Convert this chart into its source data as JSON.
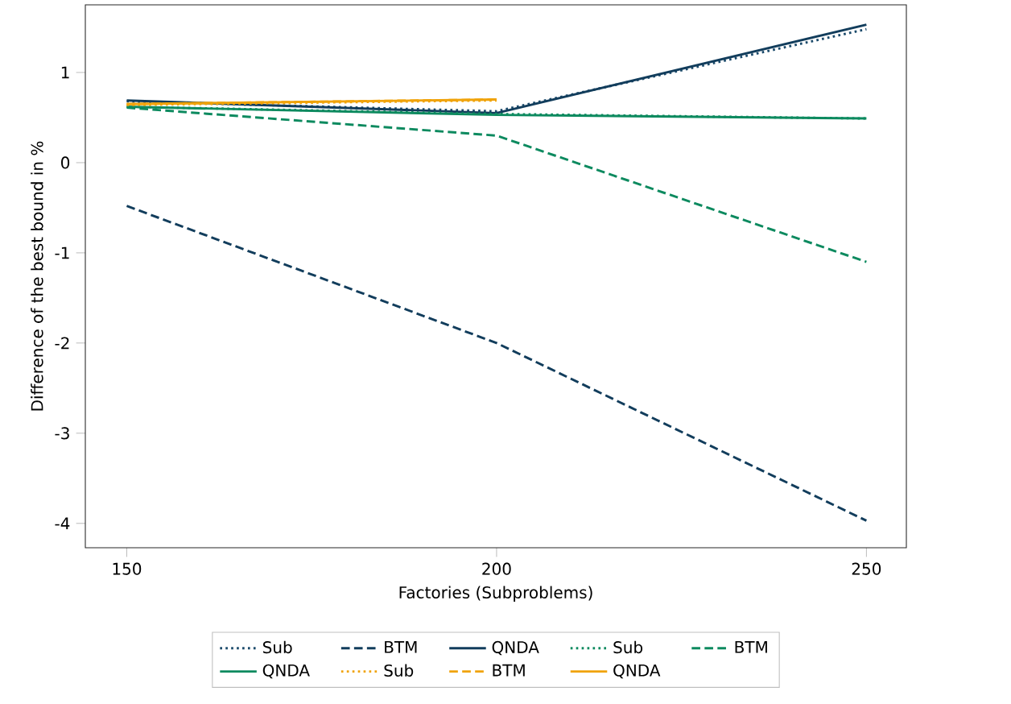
{
  "chart_data": {
    "type": "line",
    "xlabel": "Factories (Subproblems)",
    "ylabel": "Difference of the best bound in  %",
    "x": [
      150,
      200,
      250
    ],
    "xlim": [
      144.4,
      255.4
    ],
    "xticks": [
      150,
      200,
      250
    ],
    "ylim": [
      -4.27,
      1.75
    ],
    "yticks": [
      -4,
      -3,
      -2,
      -1,
      0,
      1
    ],
    "grid": false,
    "legend": "bottom",
    "series": [
      {
        "name": "Sub",
        "color": "#1b4a6b",
        "line_style": "dotted",
        "values": [
          0.68,
          0.57,
          1.48
        ]
      },
      {
        "name": "BTM",
        "color": "#123d5c",
        "line_style": "dashed",
        "values": [
          -0.48,
          -2.0,
          -3.97
        ]
      },
      {
        "name": "QNDA",
        "color": "#123d5c",
        "line_style": "solid",
        "values": [
          0.69,
          0.55,
          1.53
        ]
      },
      {
        "name": "Sub",
        "color": "#0d8a5f",
        "line_style": "dotted",
        "values": [
          0.62,
          0.54,
          0.49
        ]
      },
      {
        "name": "BTM",
        "color": "#0d8a5f",
        "line_style": "dashed",
        "values": [
          0.61,
          0.3,
          -1.1
        ]
      },
      {
        "name": "QNDA",
        "color": "#0d8a5f",
        "line_style": "solid",
        "values": [
          0.62,
          0.53,
          0.49
        ]
      },
      {
        "name": "Sub",
        "color": "#f0a30a",
        "line_style": "dotted",
        "values": [
          0.64,
          0.69,
          null
        ]
      },
      {
        "name": "BTM",
        "color": "#f0a30a",
        "line_style": "dashed",
        "values": [
          0.65,
          0.7,
          null
        ]
      },
      {
        "name": "QNDA",
        "color": "#f0a30a",
        "line_style": "solid",
        "values": [
          0.65,
          0.7,
          null
        ]
      }
    ]
  }
}
